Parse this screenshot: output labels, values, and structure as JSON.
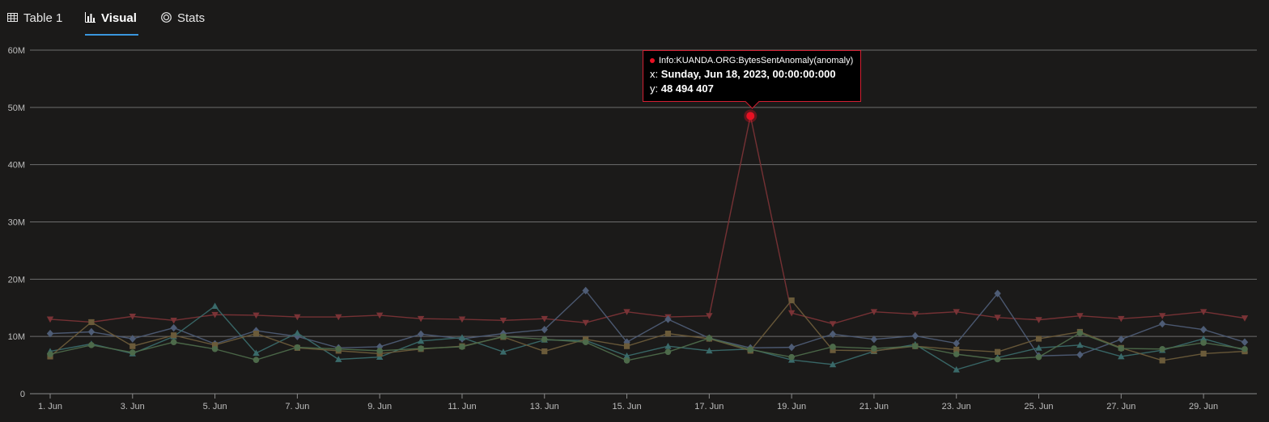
{
  "tabs": [
    {
      "label": "Table 1",
      "icon": "table-icon",
      "active": false
    },
    {
      "label": "Visual",
      "icon": "bar-chart-icon",
      "active": true
    },
    {
      "label": "Stats",
      "icon": "stats-icon",
      "active": false
    }
  ],
  "colors": {
    "accent": "#3a96dd",
    "background": "#1b1a19",
    "anomaly": "#e81123"
  },
  "tooltip": {
    "series": "Info:KUANDA.ORG:BytesSentAnomaly(anomaly)",
    "x_prefix": "x: ",
    "x_value": "Sunday, Jun 18, 2023, 00:00:00:000",
    "y_prefix": "y: ",
    "y_value": "48 494 407"
  },
  "chart_data": {
    "type": "line",
    "x_tick_labels": [
      "1. Jun",
      "3. Jun",
      "5. Jun",
      "7. Jun",
      "9. Jun",
      "11. Jun",
      "13. Jun",
      "15. Jun",
      "17. Jun",
      "19. Jun",
      "21. Jun",
      "23. Jun",
      "25. Jun",
      "27. Jun",
      "29. Jun"
    ],
    "x": [
      1,
      2,
      3,
      4,
      5,
      6,
      7,
      8,
      9,
      10,
      11,
      12,
      13,
      14,
      15,
      16,
      17,
      18,
      19,
      20,
      21,
      22,
      23,
      24,
      25,
      26,
      27,
      28,
      29,
      30
    ],
    "x_unit": "June 2023 (day of month)",
    "xlim": [
      1,
      30
    ],
    "y_tick_labels": [
      "0",
      "10M",
      "20M",
      "30M",
      "40M",
      "50M",
      "60M"
    ],
    "ylim": [
      0,
      60000000
    ],
    "grid": true,
    "highlight": {
      "x": 18,
      "y": 48494407
    },
    "series": [
      {
        "color": "#7a3336",
        "marker": "triangle-down",
        "values": [
          13.0,
          12.5,
          13.5,
          12.8,
          13.8,
          13.7,
          13.4,
          13.4,
          13.7,
          13.1,
          13.0,
          12.8,
          13.1,
          12.4,
          14.3,
          13.4,
          13.6,
          48.494407,
          14.1,
          12.2,
          14.3,
          13.9,
          14.3,
          13.3,
          12.9,
          13.6,
          13.1,
          13.6,
          14.3,
          13.2
        ]
      },
      {
        "color": "#4e5c75",
        "marker": "diamond",
        "values": [
          10.5,
          10.8,
          9.6,
          11.5,
          8.7,
          11.0,
          10.0,
          8.0,
          8.2,
          10.4,
          9.6,
          10.5,
          11.2,
          18.0,
          9.0,
          13.0,
          9.7,
          8.0,
          8.1,
          10.4,
          9.5,
          10.1,
          8.8,
          17.5,
          6.6,
          6.8,
          9.5,
          12.2,
          11.2,
          9.0
        ]
      },
      {
        "color": "#3a6a6a",
        "marker": "triangle-up",
        "values": [
          7.4,
          8.7,
          7.0,
          10.0,
          15.3,
          7.1,
          10.6,
          6.0,
          6.4,
          9.2,
          9.8,
          7.3,
          9.4,
          9.3,
          6.6,
          8.3,
          7.5,
          7.8,
          5.9,
          5.1,
          7.4,
          8.6,
          4.2,
          6.3,
          8.0,
          8.5,
          6.5,
          7.6,
          9.6,
          7.6
        ]
      },
      {
        "color": "#6b5b3a",
        "marker": "square",
        "values": [
          6.5,
          12.5,
          8.3,
          10.2,
          8.5,
          10.5,
          8.0,
          7.5,
          7.0,
          7.8,
          8.3,
          9.9,
          7.4,
          9.5,
          8.3,
          10.5,
          9.6,
          7.5,
          16.3,
          7.6,
          7.5,
          8.3,
          7.7,
          7.3,
          9.6,
          10.8,
          8.0,
          5.8,
          7.0,
          7.4
        ]
      },
      {
        "color": "#4d6a4a",
        "marker": "circle",
        "values": [
          6.9,
          8.5,
          7.2,
          9.0,
          7.8,
          5.9,
          8.1,
          7.8,
          7.5,
          7.9,
          8.2,
          10.0,
          9.5,
          9.0,
          5.8,
          7.3,
          9.7,
          7.7,
          6.4,
          8.2,
          7.9,
          8.3,
          6.9,
          6.0,
          6.4,
          10.6,
          7.9,
          7.8,
          8.9,
          7.8
        ]
      }
    ]
  }
}
